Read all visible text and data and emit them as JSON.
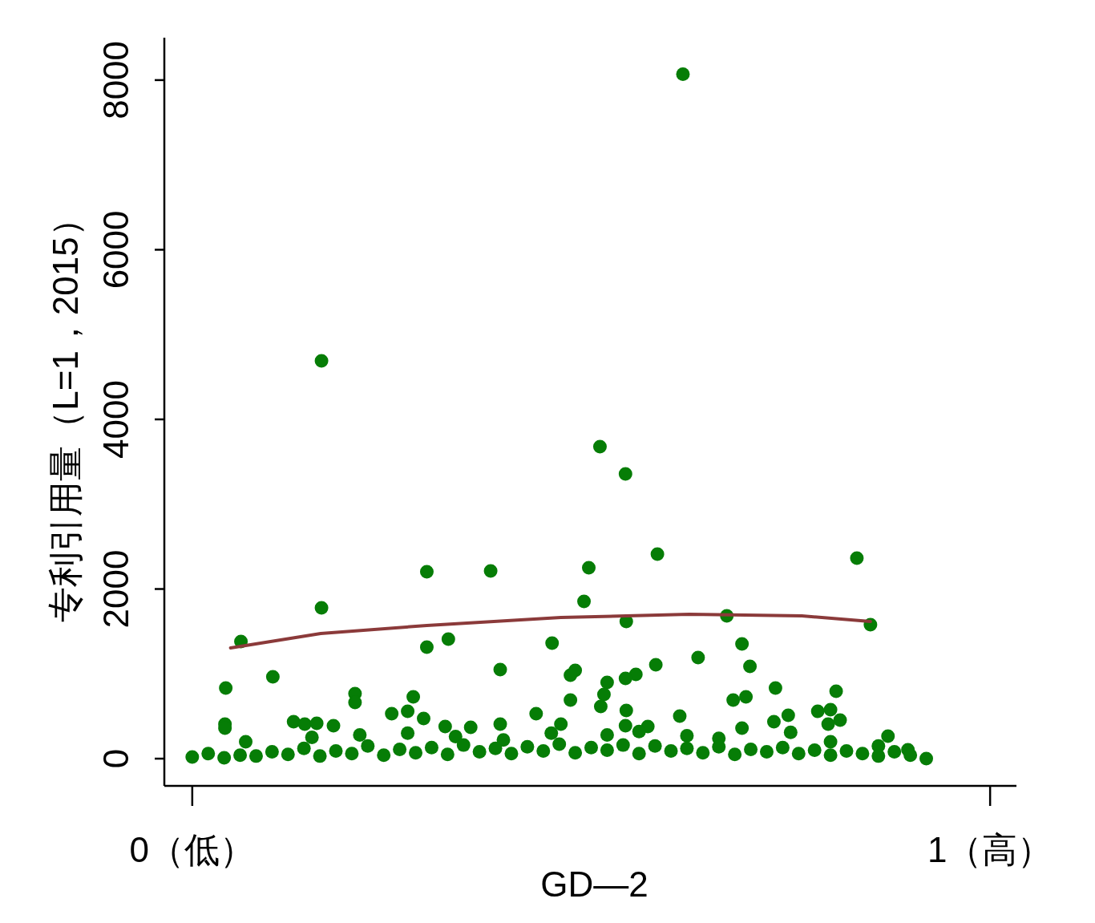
{
  "chart_data": {
    "type": "scatter",
    "xlabel": "GD—2",
    "ylabel": "专利引用量（L=1，2015）",
    "xlim": [
      -0.035,
      1.033
    ],
    "ylim": [
      -321,
      8500
    ],
    "xticks": [
      {
        "value": 0,
        "label": "0（低）"
      },
      {
        "value": 1,
        "label": "1（高）"
      }
    ],
    "yticks": [
      0,
      2000,
      4000,
      6000,
      8000
    ],
    "grid": false,
    "series": [
      {
        "type": "scatter",
        "marker": "circle",
        "color": "#067d06",
        "x": [
          0.615,
          0.162,
          0.511,
          0.543,
          0.294,
          0.374,
          0.497,
          0.583,
          0.833,
          0.162,
          0.491,
          0.544,
          0.67,
          0.85,
          0.061,
          0.294,
          0.321,
          0.451,
          0.689,
          0.634,
          0.581,
          0.699,
          0.386,
          0.101,
          0.48,
          0.474,
          0.556,
          0.543,
          0.52,
          0.042,
          0.731,
          0.807,
          0.204,
          0.204,
          0.277,
          0.516,
          0.474,
          0.694,
          0.678,
          0.512,
          0.25,
          0.27,
          0.431,
          0.544,
          0.784,
          0.8,
          0.611,
          0.747,
          0.812,
          0.041,
          0.041,
          0.127,
          0.141,
          0.156,
          0.177,
          0.29,
          0.317,
          0.349,
          0.386,
          0.462,
          0.543,
          0.571,
          0.689,
          0.729,
          0.797,
          0.067,
          0.872,
          0.897,
          0.92,
          0.15,
          0.21,
          0.27,
          0.33,
          0.39,
          0.45,
          0.52,
          0.56,
          0.62,
          0.66,
          0.75,
          0.8,
          0.86,
          0.0,
          0.02,
          0.04,
          0.06,
          0.08,
          0.1,
          0.12,
          0.14,
          0.16,
          0.18,
          0.2,
          0.22,
          0.24,
          0.26,
          0.28,
          0.3,
          0.32,
          0.34,
          0.36,
          0.38,
          0.4,
          0.42,
          0.44,
          0.46,
          0.48,
          0.5,
          0.52,
          0.54,
          0.56,
          0.58,
          0.6,
          0.62,
          0.64,
          0.66,
          0.68,
          0.7,
          0.72,
          0.74,
          0.76,
          0.78,
          0.8,
          0.82,
          0.84,
          0.86,
          0.88,
          0.9
        ],
        "values": [
          8070,
          4690,
          3678,
          3357,
          2203,
          2213,
          2251,
          2411,
          2364,
          1778,
          1853,
          1617,
          1683,
          1579,
          1381,
          1314,
          1409,
          1362,
          1352,
          1191,
          1106,
          1087,
          1050,
          965,
          1040,
          983,
          993,
          946,
          898,
          832,
          832,
          794,
          766,
          662,
          728,
          756,
          690,
          728,
          690,
          615,
          530,
          558,
          530,
          567,
          558,
          577,
          501,
          511,
          454,
          407,
          359,
          435,
          407,
          416,
          388,
          473,
          378,
          369,
          407,
          407,
          388,
          378,
          359,
          435,
          407,
          199,
          265,
          104,
          0,
          250,
          280,
          300,
          260,
          220,
          300,
          280,
          320,
          270,
          240,
          310,
          200,
          150,
          20,
          60,
          10,
          40,
          30,
          80,
          50,
          120,
          30,
          90,
          60,
          150,
          40,
          110,
          70,
          130,
          50,
          160,
          80,
          120,
          60,
          140,
          90,
          170,
          70,
          130,
          100,
          160,
          60,
          150,
          90,
          120,
          70,
          140,
          50,
          110,
          80,
          130,
          60,
          100,
          40,
          90,
          60,
          30,
          80,
          40
        ]
      },
      {
        "type": "line",
        "marker": "none",
        "color": "#8b3a3a",
        "x": [
          0.048,
          0.161,
          0.294,
          0.462,
          0.623,
          0.764,
          0.85
        ],
        "values": [
          1305,
          1475,
          1570,
          1664,
          1702,
          1683,
          1617
        ]
      }
    ]
  }
}
